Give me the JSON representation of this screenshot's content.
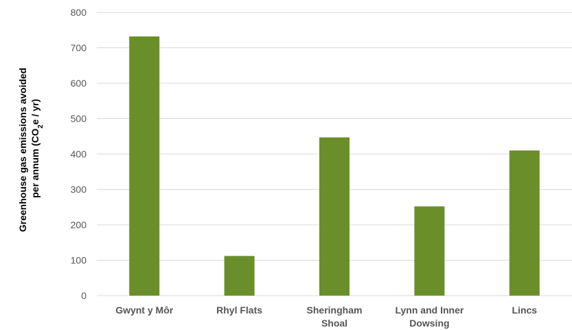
{
  "chart_data": {
    "type": "bar",
    "categories": [
      [
        "Gwynt y Môr"
      ],
      [
        "Rhyl Flats"
      ],
      [
        "Sheringham",
        "Shoal"
      ],
      [
        "Lynn and Inner",
        "Dowsing"
      ],
      [
        "Lincs"
      ]
    ],
    "values": [
      732,
      112,
      447,
      252,
      410
    ],
    "ylim": [
      0,
      800
    ],
    "yticks": [
      0,
      100,
      200,
      300,
      400,
      500,
      600,
      700,
      800
    ],
    "ylabel_line1": "Greenhouse gas emissions avoided",
    "ylabel_line2_prefix": "per annum (CO",
    "ylabel_line2_sub": "2",
    "ylabel_line2_suffix": "e / yr)",
    "bar_color": "#6a8f2a",
    "grid": true,
    "grid_color": "#d9d9d9"
  }
}
